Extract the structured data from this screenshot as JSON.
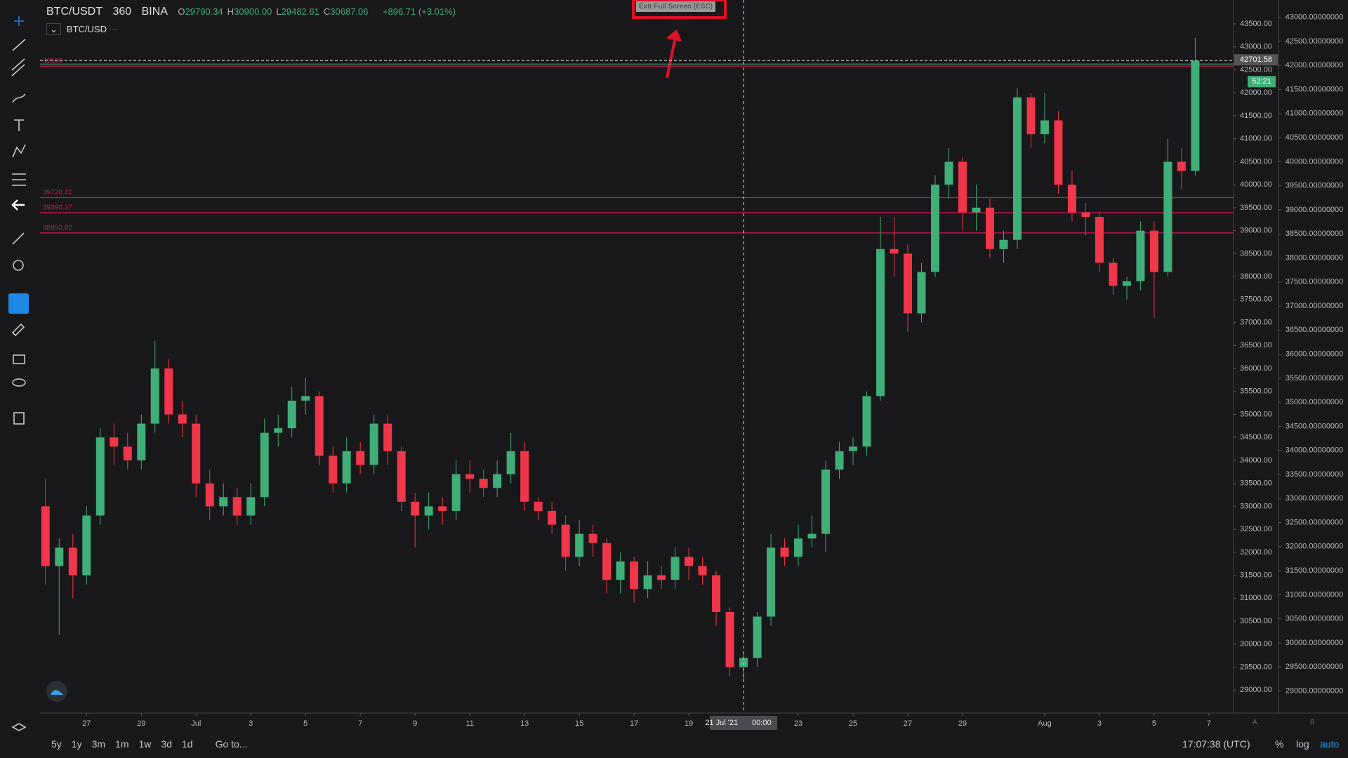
{
  "header": {
    "symbol": "BTC/USDT",
    "interval": "360",
    "exchange": "BINA",
    "ohlc": [
      {
        "key": "O",
        "value": "29790.34"
      },
      {
        "key": "H",
        "value": "30900.00"
      },
      {
        "key": "L",
        "value": "29482.61"
      },
      {
        "key": "C",
        "value": "30687.06"
      }
    ],
    "change": "+896.71 (+3.01%)",
    "compare_symbol": "BTC/USD",
    "exit_button": "Exit Full Screen (ESC)"
  },
  "chart_data": {
    "type": "candlestick",
    "up_color": "#3fae78",
    "down_color": "#f0364a",
    "level_color": "#d0155a",
    "x": [
      25.5,
      26,
      26.5,
      27,
      27.5,
      28,
      28.5,
      29,
      29.5,
      30,
      30.5,
      31,
      31.5,
      32,
      32.5,
      33,
      33.5,
      34,
      34.5,
      35,
      35.5,
      36,
      36.5,
      37,
      37.5,
      38,
      38.5,
      39,
      39.5,
      40,
      40.5,
      41,
      41.5,
      42,
      42.5,
      43,
      43.5,
      44,
      44.5,
      45,
      45.5,
      46,
      46.5,
      47,
      47.5,
      48,
      48.5,
      49,
      49.5,
      50,
      50.5,
      51,
      51.5,
      52,
      52.5,
      53,
      53.5,
      54,
      54.5,
      55,
      55.5,
      56,
      56.5,
      57,
      57.5,
      58,
      58.5,
      59,
      59.5,
      60,
      60.5,
      61,
      61.5,
      62,
      62.5,
      63,
      63.5,
      64,
      64.5,
      65,
      65.5,
      66,
      66.5,
      67,
      67.5
    ],
    "open": [
      33000,
      31700,
      32100,
      31500,
      32800,
      34500,
      34300,
      34000,
      34800,
      36000,
      35000,
      34800,
      33500,
      33000,
      33200,
      32800,
      33200,
      34600,
      34700,
      35300,
      35400,
      34100,
      33500,
      34200,
      33900,
      34800,
      34200,
      33100,
      32800,
      33000,
      32900,
      33700,
      33600,
      33400,
      33700,
      34200,
      33100,
      32900,
      32600,
      31900,
      32400,
      32200,
      31400,
      31800,
      31200,
      31500,
      31400,
      31900,
      31700,
      31500,
      30700,
      29500,
      29700,
      30600,
      32100,
      31900,
      32300,
      32400,
      33800,
      34200,
      34300,
      35400,
      38600,
      38500,
      37200,
      38100,
      40000,
      40500,
      39400,
      39500,
      38600,
      38800,
      41900,
      41100,
      41400,
      40000,
      39400,
      39300,
      38300,
      37800,
      37900,
      39000,
      38100,
      40500,
      40300
    ],
    "high": [
      33600,
      32300,
      32400,
      33000,
      34700,
      34800,
      34600,
      35000,
      36600,
      36200,
      35300,
      35000,
      33800,
      33500,
      33400,
      33500,
      34900,
      35000,
      35600,
      35800,
      35500,
      34300,
      34500,
      34400,
      35000,
      35000,
      34300,
      33300,
      33300,
      33200,
      34000,
      34000,
      33800,
      34000,
      34600,
      34400,
      33200,
      33100,
      32800,
      32700,
      32600,
      32300,
      32000,
      31900,
      31800,
      31700,
      32100,
      32100,
      31900,
      31600,
      30800,
      29800,
      30700,
      32400,
      32300,
      32600,
      32800,
      34000,
      34400,
      34500,
      35500,
      39300,
      39300,
      38700,
      38300,
      40200,
      40800,
      40600,
      40000,
      39700,
      39000,
      42100,
      42000,
      42000,
      41600,
      40300,
      39600,
      39400,
      38400,
      38000,
      39200,
      39200,
      41000,
      40800,
      43200
    ],
    "low": [
      31300,
      30200,
      31000,
      31300,
      32600,
      33900,
      33800,
      33800,
      34600,
      34800,
      34500,
      33200,
      32700,
      32800,
      32600,
      32600,
      33000,
      34300,
      34500,
      35000,
      33900,
      33300,
      33300,
      33700,
      33700,
      33900,
      32900,
      32100,
      32500,
      32600,
      32700,
      33300,
      33200,
      33200,
      33500,
      32900,
      32700,
      32400,
      31600,
      31700,
      31900,
      31100,
      31100,
      30900,
      31000,
      31200,
      31200,
      31400,
      31300,
      30400,
      29300,
      29200,
      29500,
      30400,
      31700,
      31700,
      32100,
      32000,
      33600,
      33900,
      34100,
      35300,
      38000,
      36800,
      37000,
      38000,
      39700,
      39000,
      39000,
      38400,
      38300,
      38600,
      40800,
      40900,
      39800,
      39200,
      38900,
      38100,
      37600,
      37500,
      37700,
      37100,
      38000,
      39900,
      40200
    ],
    "close": [
      31700,
      32100,
      31500,
      32800,
      34500,
      34300,
      34000,
      34800,
      36000,
      35000,
      34800,
      33500,
      33000,
      33200,
      32800,
      33200,
      34600,
      34700,
      35300,
      35400,
      34100,
      33500,
      34200,
      33900,
      34800,
      34200,
      33100,
      32800,
      33000,
      32900,
      33700,
      33600,
      33400,
      33700,
      34200,
      33100,
      32900,
      32600,
      31900,
      32400,
      32200,
      31400,
      31800,
      31200,
      31500,
      31400,
      31900,
      31700,
      31500,
      30700,
      29500,
      29700,
      30600,
      32100,
      31900,
      32300,
      32400,
      33800,
      34200,
      34300,
      35400,
      38600,
      38500,
      37200,
      38100,
      40000,
      40500,
      39400,
      39500,
      38600,
      38800,
      41900,
      41100,
      41400,
      40000,
      39400,
      39300,
      38300,
      37800,
      37900,
      39000,
      38100,
      40500,
      40300,
      42700
    ],
    "xlim": [
      25.3,
      68.9
    ],
    "xticks": [
      {
        "value": 27,
        "label": "27"
      },
      {
        "value": 29,
        "label": "29"
      },
      {
        "value": 31,
        "label": "Jul"
      },
      {
        "value": 33,
        "label": "3"
      },
      {
        "value": 35,
        "label": "5"
      },
      {
        "value": 37,
        "label": "7"
      },
      {
        "value": 39,
        "label": "9"
      },
      {
        "value": 41,
        "label": "11"
      },
      {
        "value": 43,
        "label": "13"
      },
      {
        "value": 45,
        "label": "15"
      },
      {
        "value": 47,
        "label": "17"
      },
      {
        "value": 49,
        "label": "19"
      },
      {
        "value": 53,
        "label": "23"
      },
      {
        "value": 55,
        "label": "25"
      },
      {
        "value": 57,
        "label": "27"
      },
      {
        "value": 59,
        "label": "29"
      },
      {
        "value": 62,
        "label": "Aug"
      },
      {
        "value": 64,
        "label": "3"
      },
      {
        "value": 66,
        "label": "5"
      },
      {
        "value": 68,
        "label": "7"
      }
    ],
    "ylim": [
      28500,
      44020
    ],
    "yticks": [
      {
        "value": 43500,
        "label": "43500.00"
      },
      {
        "value": 43000,
        "label": "43000.00"
      },
      {
        "value": 42500,
        "label": "42500.00"
      },
      {
        "value": 42000,
        "label": "42000.00"
      },
      {
        "value": 41500,
        "label": "41500.00"
      },
      {
        "value": 41000,
        "label": "41000.00"
      },
      {
        "value": 40500,
        "label": "40500.00"
      },
      {
        "value": 40000,
        "label": "40000.00"
      },
      {
        "value": 39500,
        "label": "39500.00"
      },
      {
        "value": 39000,
        "label": "39000.00"
      },
      {
        "value": 38500,
        "label": "38500.00"
      },
      {
        "value": 38000,
        "label": "38000.00"
      },
      {
        "value": 37500,
        "label": "37500.00"
      },
      {
        "value": 37000,
        "label": "37000.00"
      },
      {
        "value": 36500,
        "label": "36500.00"
      },
      {
        "value": 36000,
        "label": "36000.00"
      },
      {
        "value": 35500,
        "label": "35500.00"
      },
      {
        "value": 35000,
        "label": "35000.00"
      },
      {
        "value": 34500,
        "label": "34500.00"
      },
      {
        "value": 34000,
        "label": "34000.00"
      },
      {
        "value": 33500,
        "label": "33500.00"
      },
      {
        "value": 33000,
        "label": "33000.00"
      },
      {
        "value": 32500,
        "label": "32500.00"
      },
      {
        "value": 32000,
        "label": "32000.00"
      },
      {
        "value": 31500,
        "label": "31500.00"
      },
      {
        "value": 31000,
        "label": "31000.00"
      },
      {
        "value": 30500,
        "label": "30500.00"
      },
      {
        "value": 30000,
        "label": "30000.00"
      },
      {
        "value": 29500,
        "label": "29500.00"
      },
      {
        "value": 29000,
        "label": "29000.00"
      }
    ],
    "y2lim": [
      28540,
      43360
    ],
    "y2ticks": [
      {
        "value": 43000,
        "label": "43000.00000000"
      },
      {
        "value": 42500,
        "label": "42500.00000000"
      },
      {
        "value": 42000,
        "label": "42000.00000000"
      },
      {
        "value": 41500,
        "label": "41500.00000000"
      },
      {
        "value": 41000,
        "label": "41000.00000000"
      },
      {
        "value": 40500,
        "label": "40500.00000000"
      },
      {
        "value": 40000,
        "label": "40000.00000000"
      },
      {
        "value": 39500,
        "label": "39500.00000000"
      },
      {
        "value": 39000,
        "label": "39000.00000000"
      },
      {
        "value": 38500,
        "label": "38500.00000000"
      },
      {
        "value": 38000,
        "label": "38000.00000000"
      },
      {
        "value": 37500,
        "label": "37500.00000000"
      },
      {
        "value": 37000,
        "label": "37000.00000000"
      },
      {
        "value": 36500,
        "label": "36500.00000000"
      },
      {
        "value": 36000,
        "label": "36000.00000000"
      },
      {
        "value": 35500,
        "label": "35500.00000000"
      },
      {
        "value": 35000,
        "label": "35000.00000000"
      },
      {
        "value": 34500,
        "label": "34500.00000000"
      },
      {
        "value": 34000,
        "label": "34000.00000000"
      },
      {
        "value": 33500,
        "label": "33500.00000000"
      },
      {
        "value": 33000,
        "label": "33000.00000000"
      },
      {
        "value": 32500,
        "label": "32500.00000000"
      },
      {
        "value": 32000,
        "label": "32000.00000000"
      },
      {
        "value": 31500,
        "label": "31500.00000000"
      },
      {
        "value": 31000,
        "label": "31000.00000000"
      },
      {
        "value": 30500,
        "label": "30500.00000000"
      },
      {
        "value": 30000,
        "label": "30000.00000000"
      },
      {
        "value": 29500,
        "label": "29500.00000000"
      },
      {
        "value": 29000,
        "label": "29000.00000000"
      }
    ],
    "levels": [
      {
        "value": 42580,
        "label": "42580"
      },
      {
        "value": 39720.41,
        "label": "39720.41"
      },
      {
        "value": 39390.37,
        "label": "39390.37"
      },
      {
        "value": 38950.82,
        "label": "38950.82"
      }
    ],
    "last_price": {
      "value": 42701.58,
      "label": "42701.58",
      "countdown": "52:21"
    },
    "crosshair": {
      "x": 51,
      "date": "21 Jul '21",
      "time": "00:00"
    }
  },
  "footer": {
    "ranges": [
      "5y",
      "1y",
      "3m",
      "1m",
      "1w",
      "3d",
      "1d"
    ],
    "goto": "Go to...",
    "clock": "17:07:38 (UTC)",
    "percent": "%",
    "log": "log",
    "auto": "auto",
    "pane_a": "A",
    "pane_b": "B"
  }
}
